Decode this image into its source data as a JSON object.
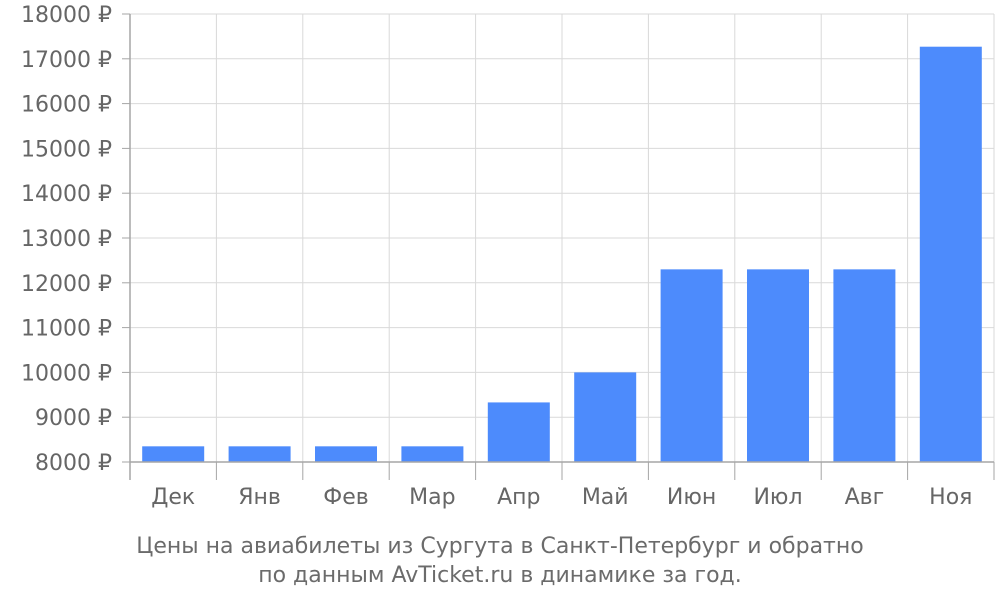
{
  "chart_data": {
    "type": "bar",
    "categories": [
      "Дек",
      "Янв",
      "Фев",
      "Мар",
      "Апр",
      "Май",
      "Июн",
      "Июл",
      "Авг",
      "Ноя"
    ],
    "values": [
      8350,
      8350,
      8350,
      8350,
      9330,
      10000,
      12300,
      12300,
      12300,
      17270
    ],
    "ylim": [
      8000,
      18000
    ],
    "yticks": [
      8000,
      9000,
      10000,
      11000,
      12000,
      13000,
      14000,
      15000,
      16000,
      17000,
      18000
    ],
    "ytick_suffix": " ₽",
    "grid": true,
    "bar_color": "#4d8bfc",
    "grid_color": "#d9d9d9",
    "axis_color": "#a6a6a6"
  },
  "caption": {
    "line1": "Цены на авиабилеты из Сургута в Санкт-Петербург и обратно",
    "line2": "по данным AvTicket.ru в динамике за год."
  }
}
